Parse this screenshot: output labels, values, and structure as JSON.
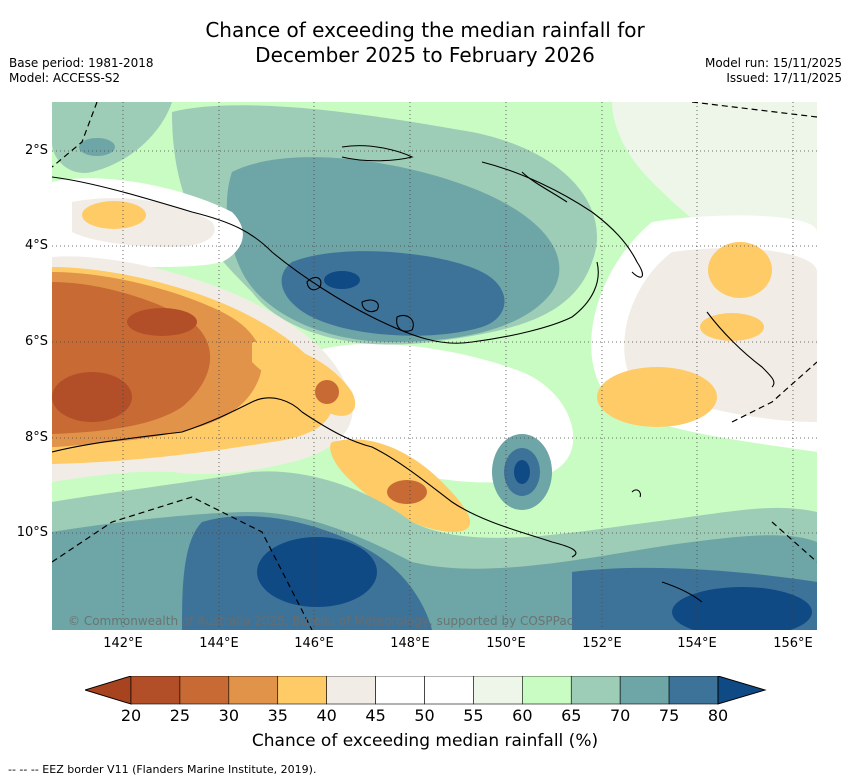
{
  "title": {
    "line1": "Chance of exceeding the median rainfall for",
    "line2": "December 2025 to February 2026"
  },
  "meta": {
    "base_period": "Base period: 1981-2018",
    "model": "Model: ACCESS-S2",
    "model_run": "Model run: 15/11/2025",
    "issued": "Issued: 17/11/2025"
  },
  "map": {
    "lon_labels": [
      "142°E",
      "144°E",
      "146°E",
      "148°E",
      "150°E",
      "152°E",
      "154°E",
      "156°E"
    ],
    "lat_labels": [
      "2°S",
      "4°S",
      "6°S",
      "8°S",
      "10°S"
    ],
    "copyright": "© Commonwealth of Australia 2025, Bureau of Meteorology, supported by COSPPac"
  },
  "colorbar": {
    "title": "Chance of exceeding median rainfall (%)",
    "ticks": [
      "20",
      "25",
      "30",
      "35",
      "40",
      "45",
      "50",
      "55",
      "60",
      "65",
      "70",
      "75",
      "80"
    ],
    "colors": [
      "#a8431f",
      "#b34f28",
      "#c86a33",
      "#e1934a",
      "#fecb67",
      "#f1ede6",
      "#ffffff",
      "#ffffff",
      "#edf6e8",
      "#c9fcc3",
      "#9dcdb6",
      "#6ea5a6",
      "#3e7399",
      "#0f4a85"
    ]
  },
  "footer": "--  --  -- EEZ border V11 (Flanders Marine Institute, 2019)."
}
